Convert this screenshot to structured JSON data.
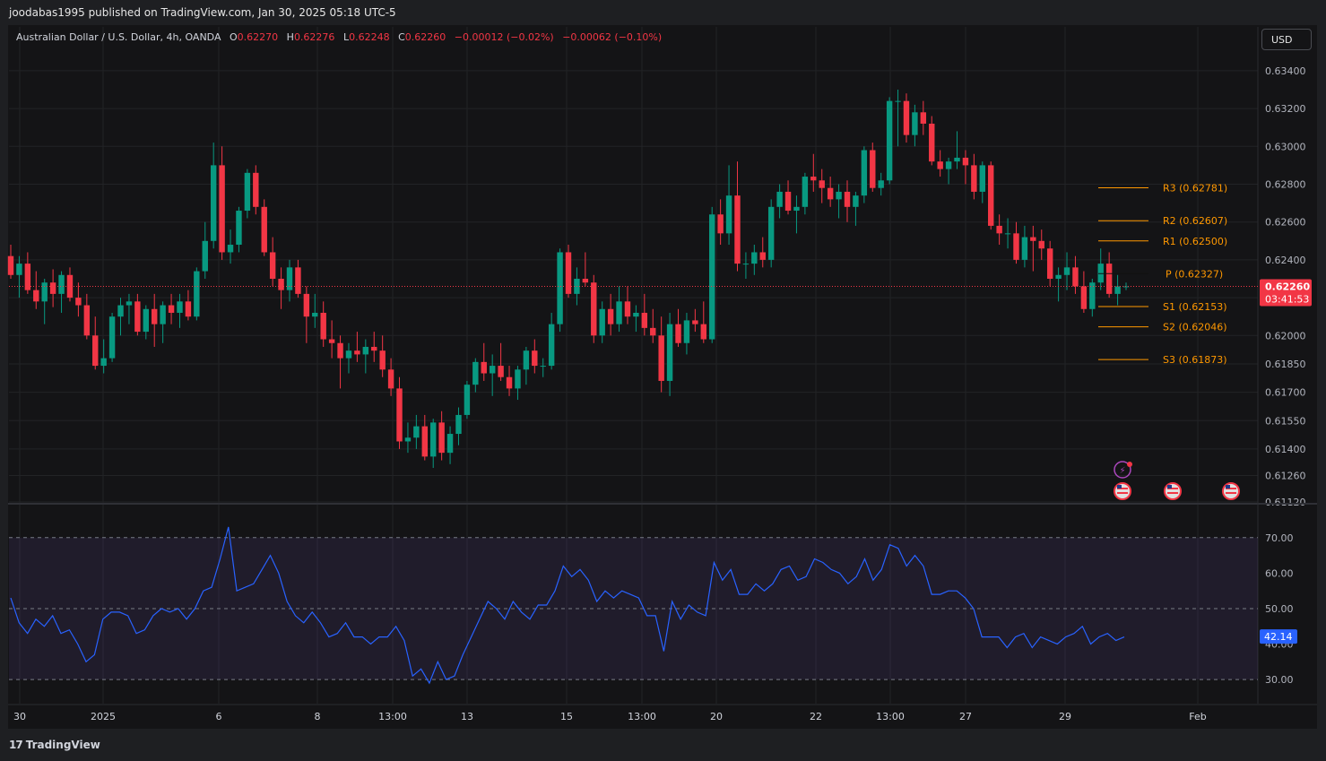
{
  "header": {
    "published_by": "joodabas1995 published on TradingView.com, Jan 30, 2025 05:18 UTC-5"
  },
  "legend": {
    "symbol": "Australian Dollar / U.S. Dollar, 4h, OANDA",
    "open_label": "O",
    "open": "0.62270",
    "high_label": "H",
    "high": "0.62276",
    "low_label": "L",
    "low": "0.62248",
    "close_label": "C",
    "close": "0.62260",
    "change": "−0.00012 (−0.02%)",
    "change2": "−0.00062 (−0.10%)"
  },
  "currency_button": "USD",
  "footer": {
    "logo_text": "TradingView"
  },
  "colors": {
    "up": "#089981",
    "down": "#f23645",
    "pivot": "#ff9800",
    "rsi": "#2962ff",
    "rsi_band": "#7e57c2"
  },
  "chart_data": [
    {
      "type": "candlestick",
      "ylim": [
        0.6112,
        0.6348
      ],
      "y_ticks": [
        "0.63400",
        "0.63200",
        "0.63000",
        "0.62800",
        "0.62600",
        "0.62400",
        "0.62200",
        "0.62000",
        "0.61850",
        "0.61700",
        "0.61550",
        "0.61400",
        "0.61260",
        "0.61120"
      ],
      "x_tick_labels": [
        "30",
        "2025",
        "6",
        "8",
        "13:00",
        "13",
        "15",
        "13:00",
        "20",
        "22",
        "13:00",
        "27",
        "29",
        "Feb"
      ],
      "current_price": "0.62260",
      "countdown": "03:41:53",
      "candles": [
        [
          0.6242,
          0.6248,
          0.623,
          0.6232
        ],
        [
          0.6232,
          0.6242,
          0.622,
          0.6238
        ],
        [
          0.6238,
          0.6244,
          0.6222,
          0.6224
        ],
        [
          0.6224,
          0.6234,
          0.6214,
          0.6218
        ],
        [
          0.6218,
          0.623,
          0.6206,
          0.6228
        ],
        [
          0.6228,
          0.6235,
          0.6215,
          0.6222
        ],
        [
          0.6222,
          0.6234,
          0.6212,
          0.6232
        ],
        [
          0.6232,
          0.6236,
          0.6218,
          0.622
        ],
        [
          0.622,
          0.6228,
          0.621,
          0.6216
        ],
        [
          0.6216,
          0.6222,
          0.6198,
          0.62
        ],
        [
          0.62,
          0.621,
          0.6182,
          0.6184
        ],
        [
          0.6184,
          0.6198,
          0.618,
          0.6188
        ],
        [
          0.6188,
          0.6212,
          0.6186,
          0.621
        ],
        [
          0.621,
          0.622,
          0.62,
          0.6216
        ],
        [
          0.6216,
          0.6222,
          0.6206,
          0.6218
        ],
        [
          0.6218,
          0.6222,
          0.62,
          0.6202
        ],
        [
          0.6202,
          0.6216,
          0.6198,
          0.6214
        ],
        [
          0.6214,
          0.6222,
          0.6194,
          0.6206
        ],
        [
          0.6206,
          0.6218,
          0.6196,
          0.6216
        ],
        [
          0.6216,
          0.6222,
          0.6206,
          0.6212
        ],
        [
          0.6212,
          0.6222,
          0.6204,
          0.6218
        ],
        [
          0.6218,
          0.6224,
          0.6208,
          0.621
        ],
        [
          0.621,
          0.6236,
          0.6208,
          0.6234
        ],
        [
          0.6234,
          0.626,
          0.623,
          0.625
        ],
        [
          0.625,
          0.6302,
          0.6246,
          0.629
        ],
        [
          0.629,
          0.63,
          0.624,
          0.6244
        ],
        [
          0.6244,
          0.6256,
          0.6238,
          0.6248
        ],
        [
          0.6248,
          0.6268,
          0.6244,
          0.6266
        ],
        [
          0.6266,
          0.6288,
          0.6262,
          0.6286
        ],
        [
          0.6286,
          0.629,
          0.6264,
          0.6268
        ],
        [
          0.6268,
          0.6272,
          0.6242,
          0.6244
        ],
        [
          0.6244,
          0.6252,
          0.6226,
          0.623
        ],
        [
          0.623,
          0.6236,
          0.6214,
          0.6224
        ],
        [
          0.6224,
          0.624,
          0.6218,
          0.6236
        ],
        [
          0.6236,
          0.624,
          0.622,
          0.6222
        ],
        [
          0.6222,
          0.6226,
          0.6196,
          0.621
        ],
        [
          0.621,
          0.6222,
          0.6204,
          0.6212
        ],
        [
          0.6212,
          0.6218,
          0.6194,
          0.6198
        ],
        [
          0.6198,
          0.6208,
          0.6188,
          0.6196
        ],
        [
          0.6196,
          0.62,
          0.6172,
          0.6188
        ],
        [
          0.6188,
          0.6196,
          0.618,
          0.6192
        ],
        [
          0.6192,
          0.6202,
          0.6186,
          0.619
        ],
        [
          0.619,
          0.6198,
          0.618,
          0.6194
        ],
        [
          0.6194,
          0.6202,
          0.6186,
          0.6192
        ],
        [
          0.6192,
          0.62,
          0.6178,
          0.6182
        ],
        [
          0.6182,
          0.6188,
          0.6168,
          0.6172
        ],
        [
          0.6172,
          0.6178,
          0.614,
          0.6144
        ],
        [
          0.6144,
          0.6154,
          0.6138,
          0.6146
        ],
        [
          0.6146,
          0.6158,
          0.614,
          0.6152
        ],
        [
          0.6152,
          0.6158,
          0.6134,
          0.6136
        ],
        [
          0.6136,
          0.6156,
          0.613,
          0.6154
        ],
        [
          0.6154,
          0.616,
          0.6134,
          0.6138
        ],
        [
          0.6138,
          0.6152,
          0.6132,
          0.6148
        ],
        [
          0.6148,
          0.6162,
          0.6142,
          0.6158
        ],
        [
          0.6158,
          0.6176,
          0.6156,
          0.6174
        ],
        [
          0.6174,
          0.6188,
          0.617,
          0.6186
        ],
        [
          0.6186,
          0.6196,
          0.6176,
          0.618
        ],
        [
          0.618,
          0.619,
          0.6168,
          0.6184
        ],
        [
          0.6184,
          0.6196,
          0.6176,
          0.6178
        ],
        [
          0.6178,
          0.6184,
          0.6168,
          0.6172
        ],
        [
          0.6172,
          0.6184,
          0.6166,
          0.6182
        ],
        [
          0.6182,
          0.6194,
          0.6174,
          0.6192
        ],
        [
          0.6192,
          0.6198,
          0.618,
          0.6184
        ],
        [
          0.6184,
          0.6188,
          0.6178,
          0.6184
        ],
        [
          0.6184,
          0.6212,
          0.6182,
          0.6206
        ],
        [
          0.6206,
          0.6246,
          0.6202,
          0.6244
        ],
        [
          0.6244,
          0.6248,
          0.622,
          0.6222
        ],
        [
          0.6222,
          0.6236,
          0.6216,
          0.623
        ],
        [
          0.623,
          0.6244,
          0.6226,
          0.6228
        ],
        [
          0.6228,
          0.6232,
          0.6196,
          0.62
        ],
        [
          0.62,
          0.6218,
          0.6196,
          0.6214
        ],
        [
          0.6214,
          0.6222,
          0.62,
          0.6206
        ],
        [
          0.6206,
          0.6226,
          0.6202,
          0.6218
        ],
        [
          0.6218,
          0.6226,
          0.6206,
          0.621
        ],
        [
          0.621,
          0.6216,
          0.6202,
          0.6212
        ],
        [
          0.6212,
          0.6222,
          0.62,
          0.6204
        ],
        [
          0.6204,
          0.6214,
          0.6196,
          0.62
        ],
        [
          0.62,
          0.621,
          0.617,
          0.6176
        ],
        [
          0.6176,
          0.6212,
          0.6168,
          0.6206
        ],
        [
          0.6206,
          0.6214,
          0.6194,
          0.6196
        ],
        [
          0.6196,
          0.6212,
          0.619,
          0.6208
        ],
        [
          0.6208,
          0.6214,
          0.6202,
          0.6206
        ],
        [
          0.6206,
          0.6218,
          0.6196,
          0.6198
        ],
        [
          0.6198,
          0.6268,
          0.6196,
          0.6264
        ],
        [
          0.6264,
          0.6272,
          0.6248,
          0.6254
        ],
        [
          0.6254,
          0.629,
          0.6248,
          0.6274
        ],
        [
          0.6274,
          0.6292,
          0.6234,
          0.6238
        ],
        [
          0.6238,
          0.6244,
          0.623,
          0.6238
        ],
        [
          0.6238,
          0.6248,
          0.6232,
          0.6244
        ],
        [
          0.6244,
          0.6252,
          0.6236,
          0.624
        ],
        [
          0.624,
          0.6272,
          0.6236,
          0.6268
        ],
        [
          0.6268,
          0.628,
          0.6262,
          0.6276
        ],
        [
          0.6276,
          0.6282,
          0.6264,
          0.6266
        ],
        [
          0.6266,
          0.6274,
          0.6254,
          0.6268
        ],
        [
          0.6268,
          0.6286,
          0.6264,
          0.6284
        ],
        [
          0.6284,
          0.6296,
          0.6276,
          0.6282
        ],
        [
          0.6282,
          0.6288,
          0.627,
          0.6278
        ],
        [
          0.6278,
          0.6284,
          0.6268,
          0.6272
        ],
        [
          0.6272,
          0.628,
          0.6262,
          0.6276
        ],
        [
          0.6276,
          0.6282,
          0.626,
          0.6268
        ],
        [
          0.6268,
          0.6276,
          0.6258,
          0.6274
        ],
        [
          0.6274,
          0.63,
          0.627,
          0.6298
        ],
        [
          0.6298,
          0.6302,
          0.6276,
          0.6278
        ],
        [
          0.6278,
          0.6286,
          0.6274,
          0.6282
        ],
        [
          0.6282,
          0.6326,
          0.628,
          0.6324
        ],
        [
          0.6324,
          0.633,
          0.63,
          0.6324
        ],
        [
          0.6324,
          0.6328,
          0.6302,
          0.6306
        ],
        [
          0.6306,
          0.6322,
          0.63,
          0.6318
        ],
        [
          0.6318,
          0.6324,
          0.6306,
          0.6312
        ],
        [
          0.6312,
          0.6316,
          0.629,
          0.6292
        ],
        [
          0.6292,
          0.6298,
          0.6284,
          0.6288
        ],
        [
          0.6288,
          0.6294,
          0.628,
          0.6292
        ],
        [
          0.6292,
          0.6308,
          0.6288,
          0.6294
        ],
        [
          0.6294,
          0.6298,
          0.628,
          0.629
        ],
        [
          0.629,
          0.6296,
          0.6272,
          0.6276
        ],
        [
          0.6276,
          0.6292,
          0.627,
          0.629
        ],
        [
          0.629,
          0.6292,
          0.6256,
          0.6258
        ],
        [
          0.6258,
          0.6264,
          0.6248,
          0.6254
        ],
        [
          0.6254,
          0.6262,
          0.6246,
          0.6254
        ],
        [
          0.6254,
          0.626,
          0.6238,
          0.624
        ],
        [
          0.624,
          0.6258,
          0.6236,
          0.6252
        ],
        [
          0.6252,
          0.6258,
          0.6234,
          0.625
        ],
        [
          0.625,
          0.6256,
          0.624,
          0.6246
        ],
        [
          0.6246,
          0.625,
          0.6226,
          0.623
        ],
        [
          0.623,
          0.6236,
          0.6218,
          0.6232
        ],
        [
          0.6232,
          0.6244,
          0.6224,
          0.6236
        ],
        [
          0.6236,
          0.6242,
          0.6222,
          0.6226
        ],
        [
          0.6226,
          0.6234,
          0.6212,
          0.6214
        ],
        [
          0.6214,
          0.623,
          0.621,
          0.6228
        ],
        [
          0.6228,
          0.6246,
          0.6224,
          0.6238
        ],
        [
          0.6238,
          0.6244,
          0.622,
          0.6222
        ],
        [
          0.6222,
          0.6232,
          0.6216,
          0.6226
        ],
        [
          0.6226,
          0.6228,
          0.6224,
          0.6226
        ]
      ],
      "pivots": [
        {
          "label": "R3 (0.62781)",
          "value": 0.62781
        },
        {
          "label": "R2 (0.62607)",
          "value": 0.62607
        },
        {
          "label": "R1 (0.62500)",
          "value": 0.625
        },
        {
          "label": "P (0.62327)",
          "value": 0.62327
        },
        {
          "label": "S1 (0.62153)",
          "value": 0.62153
        },
        {
          "label": "S2 (0.62046)",
          "value": 0.62046
        },
        {
          "label": "S3 (0.61873)",
          "value": 0.61873
        }
      ]
    },
    {
      "type": "line",
      "ylim": [
        27,
        75
      ],
      "y_ticks": [
        "70.00",
        "60.00",
        "50.00",
        "40.00",
        "30.00"
      ],
      "band": [
        30,
        70
      ],
      "current_value": "42.14",
      "values": [
        53,
        46,
        43,
        47,
        45,
        48,
        43,
        44,
        40,
        35,
        37,
        47,
        49,
        49,
        48,
        43,
        44,
        48,
        50,
        49,
        50,
        47,
        50,
        55,
        56,
        64,
        73,
        55,
        56,
        57,
        61,
        65,
        60,
        52,
        48,
        46,
        49,
        46,
        42,
        43,
        46,
        42,
        42,
        40,
        42,
        42,
        45,
        41,
        31,
        33,
        29,
        35,
        30,
        31,
        37,
        42,
        47,
        52,
        50,
        47,
        52,
        49,
        47,
        51,
        51,
        55,
        62,
        59,
        61,
        58,
        52,
        55,
        53,
        55,
        54,
        53,
        48,
        48,
        38,
        52,
        47,
        51,
        49,
        48,
        63,
        58,
        61,
        54,
        54,
        57,
        55,
        57,
        61,
        62,
        58,
        59,
        64,
        63,
        61,
        60,
        57,
        59,
        64,
        58,
        61,
        68,
        67,
        62,
        65,
        62,
        54,
        54,
        55,
        55,
        53,
        50,
        42,
        42,
        42,
        39,
        42,
        43,
        39,
        42,
        41,
        40,
        42,
        43,
        45,
        40,
        42,
        43,
        41,
        42
      ]
    }
  ]
}
